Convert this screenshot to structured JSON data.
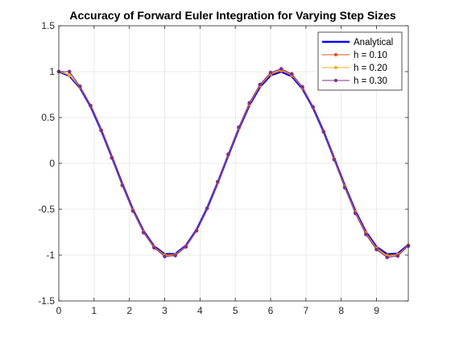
{
  "chart_data": {
    "type": "line",
    "title": "Accuracy of Forward Euler Integration for Varying Step Sizes",
    "xlabel": "",
    "ylabel": "",
    "xlim": [
      0,
      9.9
    ],
    "ylim": [
      -1.5,
      1.5
    ],
    "xticks": [
      0,
      1,
      2,
      3,
      4,
      5,
      6,
      7,
      8,
      9
    ],
    "yticks": [
      -1.5,
      -1,
      -0.5,
      0,
      0.5,
      1,
      1.5
    ],
    "xtick_labels": [
      "0",
      "1",
      "2",
      "3",
      "4",
      "5",
      "6",
      "7",
      "8",
      "9"
    ],
    "ytick_labels": [
      "-1.5",
      "-1",
      "-0.5",
      "0",
      "0.5",
      "1",
      "1.5"
    ],
    "grid": true,
    "legend_position": "top-right",
    "series": [
      {
        "name": "Analytical",
        "color": "#0000ff",
        "marker": false,
        "x": [
          0,
          0.3,
          0.6,
          0.9,
          1.2,
          1.5,
          1.8,
          2.1,
          2.4,
          2.7,
          3.0,
          3.3,
          3.6,
          3.9,
          4.2,
          4.5,
          4.8,
          5.1,
          5.4,
          5.7,
          6.0,
          6.3,
          6.6,
          6.9,
          7.2,
          7.5,
          7.8,
          8.1,
          8.4,
          8.7,
          9.0,
          9.3,
          9.6,
          9.9
        ],
        "y": [
          1.0,
          0.955,
          0.825,
          0.622,
          0.362,
          0.071,
          -0.227,
          -0.505,
          -0.737,
          -0.904,
          -0.99,
          -0.987,
          -0.897,
          -0.726,
          -0.49,
          -0.211,
          0.087,
          0.378,
          0.635,
          0.835,
          0.96,
          1.0,
          0.949,
          0.815,
          0.608,
          0.347,
          0.054,
          -0.243,
          -0.519,
          -0.747,
          -0.911,
          -0.991,
          -0.985,
          -0.889
        ]
      },
      {
        "name": "h = 0.10",
        "color": "#d95319",
        "marker": true,
        "x": [
          0,
          0.3,
          0.6,
          0.9,
          1.2,
          1.5,
          1.8,
          2.1,
          2.4,
          2.7,
          3.0,
          3.3,
          3.6,
          3.9,
          4.2,
          4.5,
          4.8,
          5.1,
          5.4,
          5.7,
          6.0,
          6.3,
          6.6,
          6.9,
          7.2,
          7.5,
          7.8,
          8.1,
          8.4,
          8.7,
          9.0,
          9.3,
          9.6,
          9.9
        ],
        "y": [
          1.0,
          0.96,
          0.83,
          0.625,
          0.362,
          0.068,
          -0.232,
          -0.51,
          -0.743,
          -0.91,
          -0.998,
          -0.993,
          -0.902,
          -0.729,
          -0.49,
          -0.208,
          0.092,
          0.384,
          0.643,
          0.844,
          0.97,
          1.01,
          0.958,
          0.822,
          0.611,
          0.346,
          0.05,
          -0.25,
          -0.527,
          -0.756,
          -0.921,
          -1.002,
          -0.993,
          -0.893
        ]
      },
      {
        "name": "h = 0.20",
        "color": "#edb120",
        "marker": true,
        "x": [
          0,
          0.3,
          0.6,
          0.9,
          1.2,
          1.5,
          1.8,
          2.1,
          2.4,
          2.7,
          3.0,
          3.3,
          3.6,
          3.9,
          4.2,
          4.5,
          4.8,
          5.1,
          5.4,
          5.7,
          6.0,
          6.3,
          6.6,
          6.9,
          7.2,
          7.5,
          7.8,
          8.1,
          8.4,
          8.7,
          9.0,
          9.3,
          9.6,
          9.9
        ],
        "y": [
          1.0,
          0.965,
          0.835,
          0.628,
          0.362,
          0.065,
          -0.237,
          -0.515,
          -0.749,
          -0.916,
          -1.006,
          -0.999,
          -0.907,
          -0.732,
          -0.49,
          -0.205,
          0.097,
          0.39,
          0.651,
          0.853,
          0.98,
          1.02,
          0.967,
          0.829,
          0.614,
          0.345,
          0.046,
          -0.257,
          -0.535,
          -0.765,
          -0.931,
          -1.013,
          -1.001,
          -0.897
        ]
      },
      {
        "name": "h = 0.30",
        "color": "#7e2f8e",
        "marker": true,
        "x": [
          0,
          0.3,
          0.6,
          0.9,
          1.2,
          1.5,
          1.8,
          2.1,
          2.4,
          2.7,
          3.0,
          3.3,
          3.6,
          3.9,
          4.2,
          4.5,
          4.8,
          5.1,
          5.4,
          5.7,
          6.0,
          6.3,
          6.6,
          6.9,
          7.2,
          7.5,
          7.8,
          8.1,
          8.4,
          8.7,
          9.0,
          9.3,
          9.6,
          9.9
        ],
        "y": [
          1.0,
          1.0,
          0.84,
          0.63,
          0.36,
          0.06,
          -0.24,
          -0.52,
          -0.755,
          -0.92,
          -1.015,
          -1.005,
          -0.91,
          -0.735,
          -0.49,
          -0.2,
          0.1,
          0.395,
          0.66,
          0.86,
          0.99,
          1.03,
          0.975,
          0.835,
          0.615,
          0.345,
          0.04,
          -0.265,
          -0.545,
          -0.775,
          -0.94,
          -1.025,
          -1.01,
          -0.9
        ]
      }
    ]
  }
}
